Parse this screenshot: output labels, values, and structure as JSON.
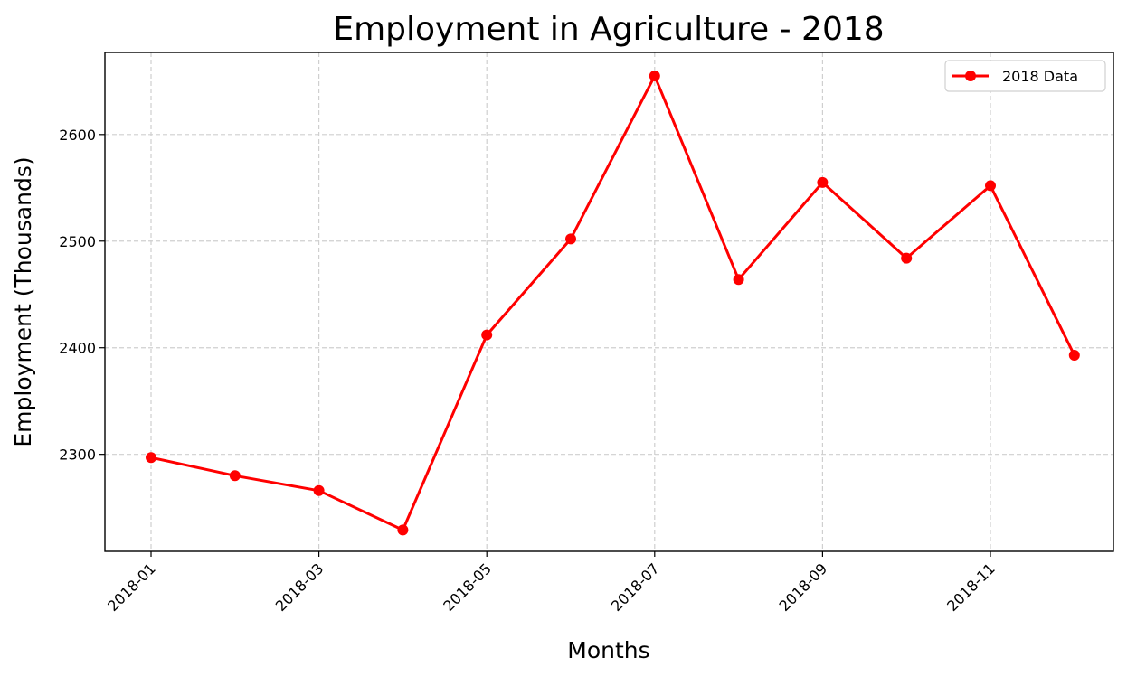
{
  "chart_data": {
    "type": "line",
    "title": "Employment in Agriculture - 2018",
    "xlabel": "Months",
    "ylabel": "Employment (Thousands)",
    "x": [
      "2018-01",
      "2018-02",
      "2018-03",
      "2018-04",
      "2018-05",
      "2018-06",
      "2018-07",
      "2018-08",
      "2018-09",
      "2018-10",
      "2018-11",
      "2018-12"
    ],
    "x_tick_labels": [
      "2018-01",
      "2018-03",
      "2018-05",
      "2018-07",
      "2018-09",
      "2018-11"
    ],
    "y_ticks": [
      2300,
      2400,
      2500,
      2600
    ],
    "ylim": [
      2209,
      2677
    ],
    "grid": true,
    "legend_position": "top-right",
    "series": [
      {
        "name": "2018 Data",
        "color": "#ff0000",
        "marker": "circle",
        "values": [
          2297,
          2280,
          2266,
          2229,
          2412,
          2502,
          2655,
          2464,
          2555,
          2484,
          2552,
          2393
        ]
      }
    ]
  }
}
